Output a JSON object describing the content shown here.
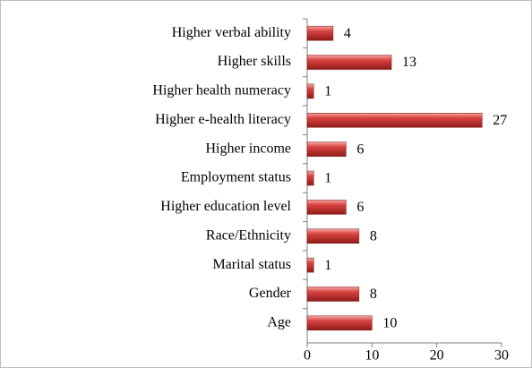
{
  "chart_data": {
    "type": "bar",
    "orientation": "horizontal",
    "categories": [
      "Higher verbal ability",
      "Higher skills",
      "Higher health numeracy",
      "Higher e-health literacy",
      "Higher income",
      "Employment status",
      "Higher education level",
      "Race/Ethnicity",
      "Marital status",
      "Gender",
      "Age"
    ],
    "values": [
      4,
      13,
      1,
      27,
      6,
      1,
      6,
      8,
      1,
      8,
      10
    ],
    "color": "#c0302f",
    "xlim": [
      0,
      30
    ],
    "xticks": [
      0,
      10,
      20,
      30
    ],
    "grid": false
  }
}
